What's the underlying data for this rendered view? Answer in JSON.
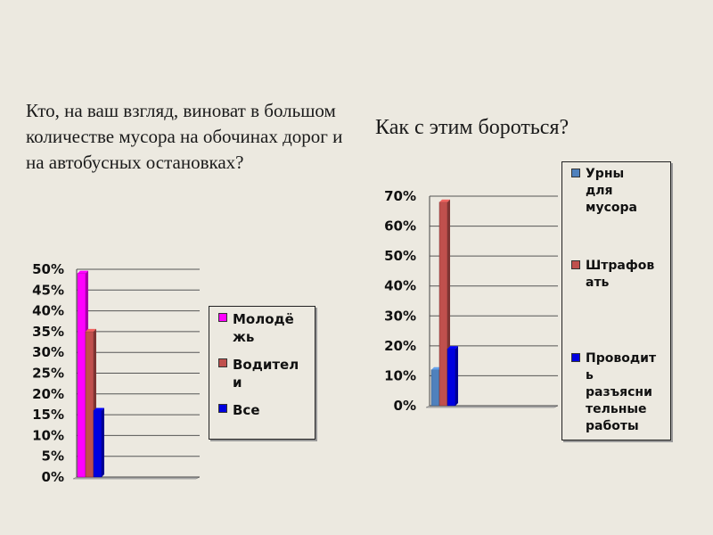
{
  "question_left": "Кто, на ваш взгляд, виноват в большом количестве мусора на обочинах дорог и на автобусных остановках?",
  "question_right": "Как с  этим бороться?",
  "chart_data": [
    {
      "type": "bar",
      "title": "",
      "xlabel": "",
      "ylabel": "",
      "ylim": [
        0,
        50
      ],
      "yticks": [
        "0%",
        "5%",
        "10%",
        "15%",
        "20%",
        "25%",
        "30%",
        "35%",
        "40%",
        "45%",
        "50%"
      ],
      "grid": true,
      "legend_position": "right",
      "series": [
        {
          "name": "Молодёжь",
          "color": "#ff00ff",
          "values": [
            49
          ]
        },
        {
          "name": "Водители",
          "color": "#c0504d",
          "values": [
            35
          ]
        },
        {
          "name": "Все",
          "color": "#0000e0",
          "values": [
            16
          ]
        }
      ],
      "legend_labels": [
        [
          "Молодё",
          "жь"
        ],
        [
          "Водител",
          "и"
        ],
        [
          "Все"
        ]
      ]
    },
    {
      "type": "bar",
      "title": "",
      "xlabel": "",
      "ylabel": "",
      "ylim": [
        0,
        70
      ],
      "yticks": [
        "0%",
        "10%",
        "20%",
        "30%",
        "40%",
        "50%",
        "60%",
        "70%"
      ],
      "grid": true,
      "legend_position": "right",
      "series": [
        {
          "name": "Урны для мусора",
          "color": "#4f81bd",
          "values": [
            12
          ]
        },
        {
          "name": "Штрафовать",
          "color": "#c0504d",
          "values": [
            68
          ]
        },
        {
          "name": "Проводить разъяснительные работы",
          "color": "#0000e0",
          "values": [
            19
          ]
        }
      ],
      "legend_labels": [
        [
          "Урны для",
          "мусора"
        ],
        [
          "Штрафов",
          "ать"
        ],
        [
          "Проводит",
          "ь",
          "разъясни",
          "тельные",
          "работы"
        ]
      ]
    }
  ]
}
